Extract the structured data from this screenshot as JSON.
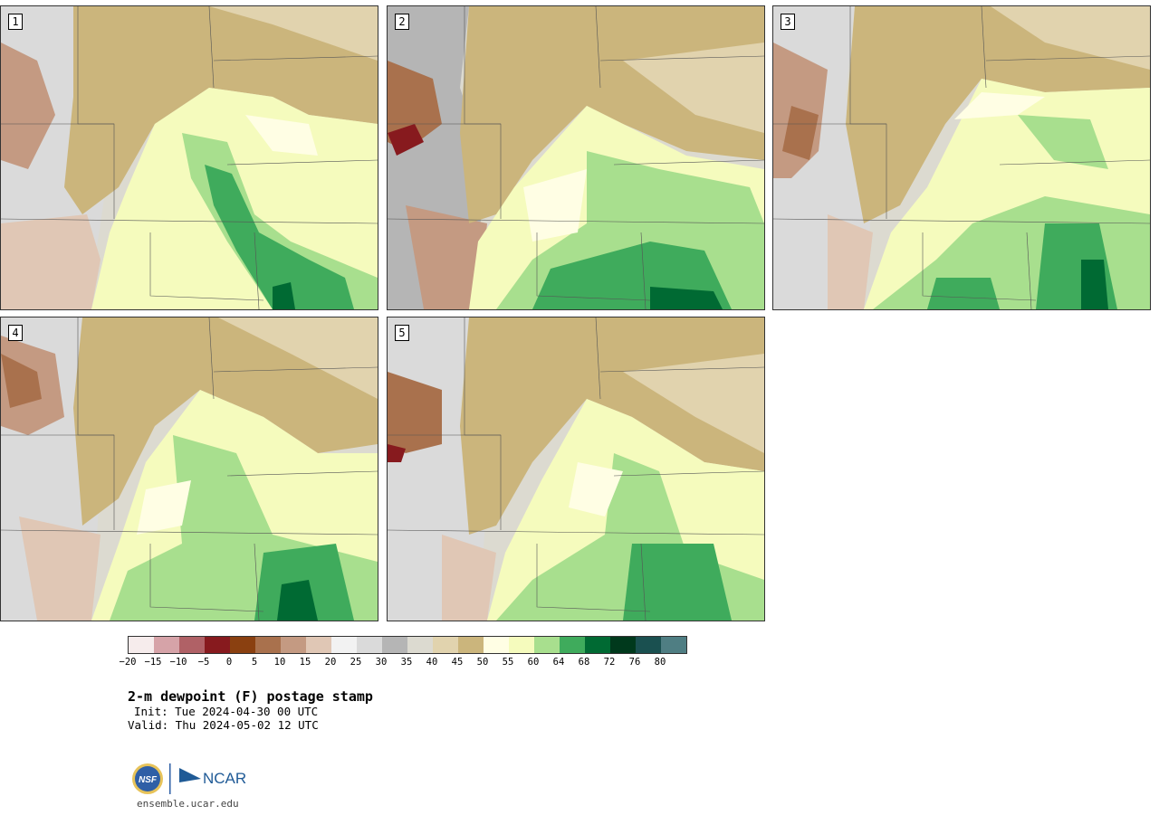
{
  "panels": [
    {
      "label": "1"
    },
    {
      "label": "2"
    },
    {
      "label": "3"
    },
    {
      "label": "4"
    },
    {
      "label": "5"
    }
  ],
  "colorbar": {
    "colors": [
      "#f6ecec",
      "#d6a3a8",
      "#b06166",
      "#871a1e",
      "#8a4010",
      "#a9714d",
      "#c49a82",
      "#e0c7b5",
      "#f2f2f2",
      "#dadada",
      "#b5b5b5",
      "#dcdad0",
      "#e1d3ae",
      "#cbb57c",
      "#fffee4",
      "#f5fbbd",
      "#a8df8e",
      "#3fab5c",
      "#006a33",
      "#00391c",
      "#1a5050",
      "#4f7e83"
    ],
    "ticks": [
      "−20",
      "−15",
      "−10",
      "−5",
      "0",
      "5",
      "10",
      "15",
      "20",
      "25",
      "30",
      "35",
      "40",
      "45",
      "50",
      "55",
      "60",
      "64",
      "68",
      "72",
      "76",
      "80"
    ]
  },
  "title": "2-m dewpoint (F) postage stamp",
  "init": "Init: Tue 2024-04-30 00 UTC",
  "valid": "Valid: Thu 2024-05-02 12 UTC",
  "logo": {
    "nsf_text": "NSF",
    "ncar_text": "NCAR"
  },
  "url": "ensemble.ucar.edu"
}
